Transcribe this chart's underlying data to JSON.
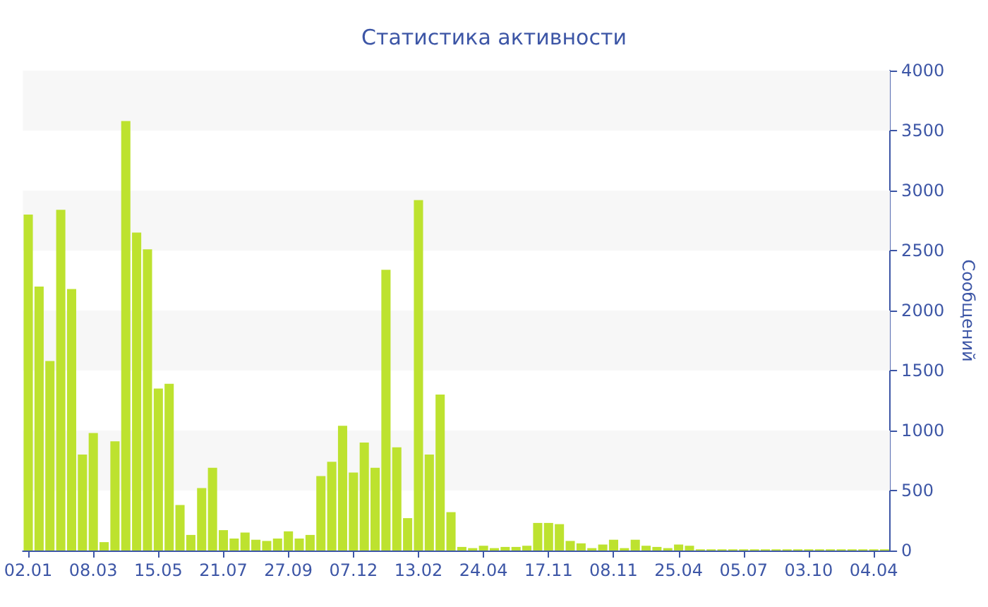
{
  "chart_data": {
    "type": "bar",
    "title": "Статистика активности",
    "ylabel": "Сообщений",
    "categories": [
      "02.01",
      null,
      null,
      null,
      null,
      null,
      "08.03",
      null,
      null,
      null,
      null,
      null,
      "15.05",
      null,
      null,
      null,
      null,
      null,
      "21.07",
      null,
      null,
      null,
      null,
      null,
      "27.09",
      null,
      null,
      null,
      null,
      null,
      "07.12",
      null,
      null,
      null,
      null,
      null,
      "13.02",
      null,
      null,
      null,
      null,
      null,
      "24.04",
      null,
      null,
      null,
      null,
      null,
      "17.11",
      null,
      null,
      null,
      null,
      null,
      "08.11",
      null,
      null,
      null,
      null,
      null,
      "25.04",
      null,
      null,
      null,
      null,
      null,
      "05.07",
      null,
      null,
      null,
      null,
      null,
      "03.10",
      null,
      null,
      null,
      null,
      null,
      "04.04",
      null
    ],
    "values": [
      2800,
      2200,
      1580,
      2840,
      2180,
      800,
      980,
      70,
      910,
      3580,
      2650,
      2510,
      1350,
      1390,
      380,
      130,
      520,
      690,
      170,
      100,
      150,
      90,
      80,
      100,
      160,
      100,
      130,
      620,
      740,
      1040,
      650,
      900,
      690,
      2340,
      860,
      270,
      2920,
      800,
      1300,
      320,
      30,
      20,
      40,
      20,
      30,
      30,
      40,
      230,
      230,
      220,
      80,
      60,
      20,
      50,
      90,
      20,
      90,
      40,
      30,
      20,
      50,
      40,
      10,
      10,
      10,
      10,
      10,
      10,
      10,
      10,
      10,
      10,
      10,
      10,
      10,
      10,
      10,
      10,
      10,
      10
    ],
    "color": "#bde22f",
    "ylim": [
      0,
      4000
    ],
    "yticks": [
      0,
      500,
      1000,
      1500,
      2000,
      2500,
      3000,
      3500,
      4000
    ],
    "bands": [
      {
        "axis": "y",
        "from": 500,
        "to": 1000,
        "color": "#f7f7f7"
      },
      {
        "axis": "y",
        "from": 1500,
        "to": 2000,
        "color": "#f7f7f7"
      },
      {
        "axis": "y",
        "from": 2500,
        "to": 3000,
        "color": "#f7f7f7"
      },
      {
        "axis": "y",
        "from": 3500,
        "to": 4000,
        "color": "#f7f7f7"
      }
    ]
  }
}
